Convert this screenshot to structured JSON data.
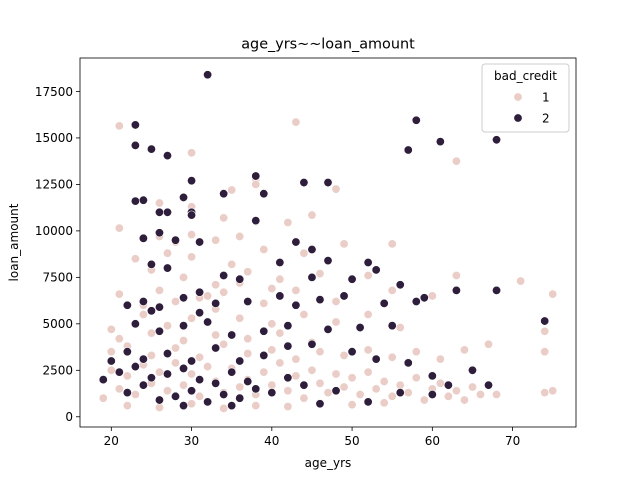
{
  "chart_data": {
    "type": "scatter",
    "title": "age_yrs~~loan_amount",
    "xlabel": "age_yrs",
    "ylabel": "loan_amount",
    "xlim": [
      16.1,
      77.9
    ],
    "ylim": [
      -550,
      19300
    ],
    "xticks": [
      20,
      30,
      40,
      50,
      60,
      70
    ],
    "yticks": [
      0,
      2500,
      5000,
      7500,
      10000,
      12500,
      15000,
      17500
    ],
    "xtick_labels": [
      "20",
      "30",
      "40",
      "50",
      "60",
      "70"
    ],
    "ytick_labels": [
      "0",
      "2500",
      "5000",
      "7500",
      "10000",
      "12500",
      "15000",
      "17500"
    ],
    "grid": false,
    "legend": {
      "title": "bad_credit",
      "placement": "top-right",
      "entries": [
        {
          "label": "1",
          "color": "#ebcdc7"
        },
        {
          "label": "2",
          "color": "#2e1e3b"
        }
      ]
    },
    "series": [
      {
        "name": "1",
        "color": "#ebcdc7",
        "points": [
          [
            21,
            15650
          ],
          [
            43,
            15850
          ],
          [
            30,
            14200
          ],
          [
            63,
            13750
          ],
          [
            38,
            12750
          ],
          [
            35,
            12200
          ],
          [
            48,
            12250
          ],
          [
            38,
            12500
          ],
          [
            26,
            11500
          ],
          [
            30,
            11300
          ],
          [
            21,
            10150
          ],
          [
            34,
            10700
          ],
          [
            38,
            10500
          ],
          [
            42,
            10450
          ],
          [
            45,
            10850
          ],
          [
            26,
            9700
          ],
          [
            28,
            9400
          ],
          [
            30,
            9800
          ],
          [
            33,
            9500
          ],
          [
            36,
            9700
          ],
          [
            23,
            8500
          ],
          [
            27,
            8800
          ],
          [
            30,
            8600
          ],
          [
            35,
            8200
          ],
          [
            39,
            9000
          ],
          [
            44,
            8800
          ],
          [
            49,
            9300
          ],
          [
            55,
            9300
          ],
          [
            25,
            7900
          ],
          [
            29,
            7500
          ],
          [
            33,
            7100
          ],
          [
            37,
            7800
          ],
          [
            41,
            7400
          ],
          [
            46,
            7700
          ],
          [
            50,
            7400
          ],
          [
            52,
            7600
          ],
          [
            63,
            7600
          ],
          [
            71,
            7300
          ],
          [
            21,
            6600
          ],
          [
            26,
            6800
          ],
          [
            31,
            6400
          ],
          [
            34,
            6700
          ],
          [
            39,
            6100
          ],
          [
            43,
            6800
          ],
          [
            48,
            6200
          ],
          [
            55,
            6800
          ],
          [
            60,
            6500
          ],
          [
            75,
            6600
          ],
          [
            20,
            4700
          ],
          [
            24,
            5500
          ],
          [
            27,
            4900
          ],
          [
            30,
            5300
          ],
          [
            33,
            5800
          ],
          [
            36,
            5300
          ],
          [
            40,
            5000
          ],
          [
            44,
            5500
          ],
          [
            48,
            5100
          ],
          [
            52,
            5500
          ],
          [
            56,
            4800
          ],
          [
            74,
            4600
          ],
          [
            20,
            3500
          ],
          [
            22,
            3800
          ],
          [
            25,
            3300
          ],
          [
            28,
            3700
          ],
          [
            31,
            3200
          ],
          [
            34,
            3900
          ],
          [
            37,
            3400
          ],
          [
            40,
            3600
          ],
          [
            43,
            3100
          ],
          [
            46,
            3500
          ],
          [
            49,
            3300
          ],
          [
            52,
            3600
          ],
          [
            55,
            3200
          ],
          [
            58,
            3500
          ],
          [
            61,
            3100
          ],
          [
            64,
            3600
          ],
          [
            67,
            3900
          ],
          [
            74,
            3500
          ],
          [
            19,
            1000
          ],
          [
            20,
            2500
          ],
          [
            21,
            1500
          ],
          [
            22,
            2200
          ],
          [
            23,
            1200
          ],
          [
            24,
            2800
          ],
          [
            25,
            1800
          ],
          [
            26,
            2400
          ],
          [
            27,
            1400
          ],
          [
            28,
            2900
          ],
          [
            29,
            1700
          ],
          [
            30,
            2300
          ],
          [
            31,
            1100
          ],
          [
            32,
            2700
          ],
          [
            33,
            1900
          ],
          [
            34,
            1300
          ],
          [
            35,
            2600
          ],
          [
            36,
            1600
          ],
          [
            37,
            2000
          ],
          [
            38,
            1200
          ],
          [
            39,
            2400
          ],
          [
            40,
            1700
          ],
          [
            41,
            2900
          ],
          [
            42,
            1400
          ],
          [
            43,
            2200
          ],
          [
            44,
            1000
          ],
          [
            45,
            2500
          ],
          [
            46,
            1800
          ],
          [
            47,
            1300
          ],
          [
            48,
            2300
          ],
          [
            49,
            1600
          ],
          [
            50,
            2100
          ],
          [
            51,
            1200
          ],
          [
            52,
            2400
          ],
          [
            53,
            1500
          ],
          [
            54,
            1900
          ],
          [
            55,
            1100
          ],
          [
            56,
            1700
          ],
          [
            57,
            1300
          ],
          [
            58,
            2100
          ],
          [
            59,
            900
          ],
          [
            60,
            1500
          ],
          [
            61,
            1800
          ],
          [
            62,
            1100
          ],
          [
            63,
            1400
          ],
          [
            64,
            900
          ],
          [
            65,
            1600
          ],
          [
            66,
            1200
          ],
          [
            68,
            1200
          ],
          [
            74,
            1300
          ],
          [
            75,
            1400
          ],
          [
            22,
            600
          ],
          [
            26,
            500
          ],
          [
            30,
            700
          ],
          [
            34,
            450
          ],
          [
            38,
            600
          ],
          [
            42,
            550
          ],
          [
            46,
            700
          ],
          [
            50,
            650
          ],
          [
            54,
            750
          ],
          [
            21,
            4200
          ],
          [
            25,
            4500
          ],
          [
            29,
            4100
          ],
          [
            33,
            4400
          ],
          [
            37,
            4200
          ],
          [
            41,
            4500
          ],
          [
            45,
            4000
          ],
          [
            24,
            6000
          ],
          [
            28,
            6200
          ],
          [
            32,
            6500
          ],
          [
            36,
            7200
          ],
          [
            40,
            6900
          ]
        ]
      },
      {
        "name": "2",
        "color": "#2e1e3b",
        "points": [
          [
            32,
            18400
          ],
          [
            23,
            15700
          ],
          [
            58,
            15950
          ],
          [
            23,
            14600
          ],
          [
            25,
            14400
          ],
          [
            27,
            14050
          ],
          [
            57,
            14350
          ],
          [
            61,
            14800
          ],
          [
            68,
            14900
          ],
          [
            30,
            12700
          ],
          [
            38,
            12950
          ],
          [
            44,
            12600
          ],
          [
            47,
            12600
          ],
          [
            23,
            11600
          ],
          [
            24,
            11650
          ],
          [
            29,
            11800
          ],
          [
            34,
            12000
          ],
          [
            39,
            12000
          ],
          [
            26,
            11000
          ],
          [
            27,
            11000
          ],
          [
            30,
            11000
          ],
          [
            30,
            10850
          ],
          [
            38,
            10550
          ],
          [
            24,
            9600
          ],
          [
            26,
            9900
          ],
          [
            28,
            9500
          ],
          [
            31,
            9400
          ],
          [
            43,
            9400
          ],
          [
            45,
            9000
          ],
          [
            47,
            8400
          ],
          [
            52,
            8300
          ],
          [
            25,
            8200
          ],
          [
            27,
            8000
          ],
          [
            34,
            7600
          ],
          [
            36,
            7400
          ],
          [
            41,
            8300
          ],
          [
            45,
            7500
          ],
          [
            50,
            7400
          ],
          [
            53,
            7900
          ],
          [
            56,
            7100
          ],
          [
            22,
            6000
          ],
          [
            24,
            6200
          ],
          [
            26,
            5900
          ],
          [
            29,
            6400
          ],
          [
            31,
            6700
          ],
          [
            33,
            6100
          ],
          [
            37,
            6200
          ],
          [
            41,
            6500
          ],
          [
            43,
            6000
          ],
          [
            46,
            6300
          ],
          [
            49,
            6500
          ],
          [
            54,
            6100
          ],
          [
            58,
            6200
          ],
          [
            59,
            6400
          ],
          [
            63,
            6800
          ],
          [
            68,
            6800
          ],
          [
            23,
            5000
          ],
          [
            26,
            4600
          ],
          [
            29,
            4900
          ],
          [
            32,
            5100
          ],
          [
            35,
            4400
          ],
          [
            39,
            4600
          ],
          [
            42,
            4900
          ],
          [
            47,
            4700
          ],
          [
            51,
            4800
          ],
          [
            55,
            4900
          ],
          [
            74,
            5150
          ],
          [
            20,
            3000
          ],
          [
            22,
            3500
          ],
          [
            24,
            3100
          ],
          [
            27,
            3400
          ],
          [
            30,
            3000
          ],
          [
            33,
            3700
          ],
          [
            36,
            3000
          ],
          [
            39,
            3300
          ],
          [
            42,
            3800
          ],
          [
            45,
            3900
          ],
          [
            50,
            3500
          ],
          [
            53,
            3100
          ],
          [
            57,
            2900
          ],
          [
            60,
            2200
          ],
          [
            65,
            2500
          ],
          [
            19,
            2000
          ],
          [
            21,
            2400
          ],
          [
            22,
            1300
          ],
          [
            23,
            2700
          ],
          [
            24,
            1700
          ],
          [
            25,
            2100
          ],
          [
            26,
            900
          ],
          [
            27,
            2300
          ],
          [
            28,
            1100
          ],
          [
            29,
            2600
          ],
          [
            30,
            1400
          ],
          [
            31,
            2000
          ],
          [
            32,
            800
          ],
          [
            33,
            1800
          ],
          [
            34,
            1200
          ],
          [
            35,
            2400
          ],
          [
            36,
            1000
          ],
          [
            37,
            1900
          ],
          [
            38,
            1500
          ],
          [
            40,
            1300
          ],
          [
            42,
            2100
          ],
          [
            44,
            1700
          ],
          [
            46,
            700
          ],
          [
            48,
            1400
          ],
          [
            52,
            800
          ],
          [
            56,
            1300
          ],
          [
            60,
            1200
          ],
          [
            62,
            1700
          ],
          [
            67,
            1700
          ],
          [
            29,
            600
          ],
          [
            35,
            600
          ],
          [
            25,
            5700
          ],
          [
            31,
            5600
          ]
        ]
      }
    ]
  }
}
